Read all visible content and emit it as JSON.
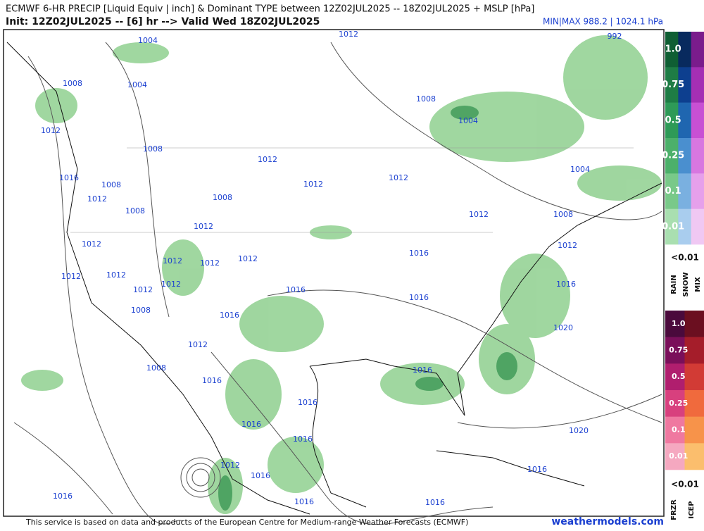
{
  "header": {
    "title": "ECMWF 6-HR PRECIP [Liquid Equiv | inch] & Dominant TYPE between 12Z02JUL2025 -- 18Z02JUL2025 + MSLP [hPa]",
    "subtitle": "Init: 12Z02JUL2025 -- [6] hr --> Valid Wed 18Z02JUL2025",
    "minmax": "MIN|MAX 988.2 | 1024.1 hPa"
  },
  "isobar_labels": [
    "1004",
    "1012",
    "992",
    "1008",
    "1004",
    "1008",
    "1004",
    "1012",
    "1008",
    "1012",
    "1004",
    "1016",
    "1008",
    "1012",
    "1012",
    "1012",
    "1008",
    "1008",
    "1012",
    "1008",
    "1012",
    "1012",
    "1012",
    "1012",
    "1012",
    "1012",
    "1016",
    "1012",
    "1012",
    "1012",
    "1012",
    "1016",
    "1016",
    "1016",
    "1008",
    "1016",
    "1020",
    "1012",
    "1008",
    "1016",
    "1016",
    "1016",
    "1016",
    "1020",
    "1016",
    "1012",
    "1016",
    "1016",
    "1016",
    "1016",
    "1016"
  ],
  "legend": {
    "rain_snow_mix": {
      "levels": [
        "1.0",
        "0.75",
        "0.5",
        "0.25",
        "0.1",
        "0.01"
      ],
      "below": "<0.01",
      "types": [
        "RAIN",
        "SNOW",
        "MIX"
      ]
    },
    "frzr_icep": {
      "levels": [
        "1.0",
        "0.75",
        "0.5",
        "0.25",
        "0.1",
        "0.01"
      ],
      "below": "<0.01",
      "types": [
        "FRZR",
        "ICEP"
      ]
    }
  },
  "footer": {
    "credit": "This service is based on data and products of the European Centre for Medium-range Weather Forecasts (ECMWF)",
    "site": "weathermodels.com"
  }
}
